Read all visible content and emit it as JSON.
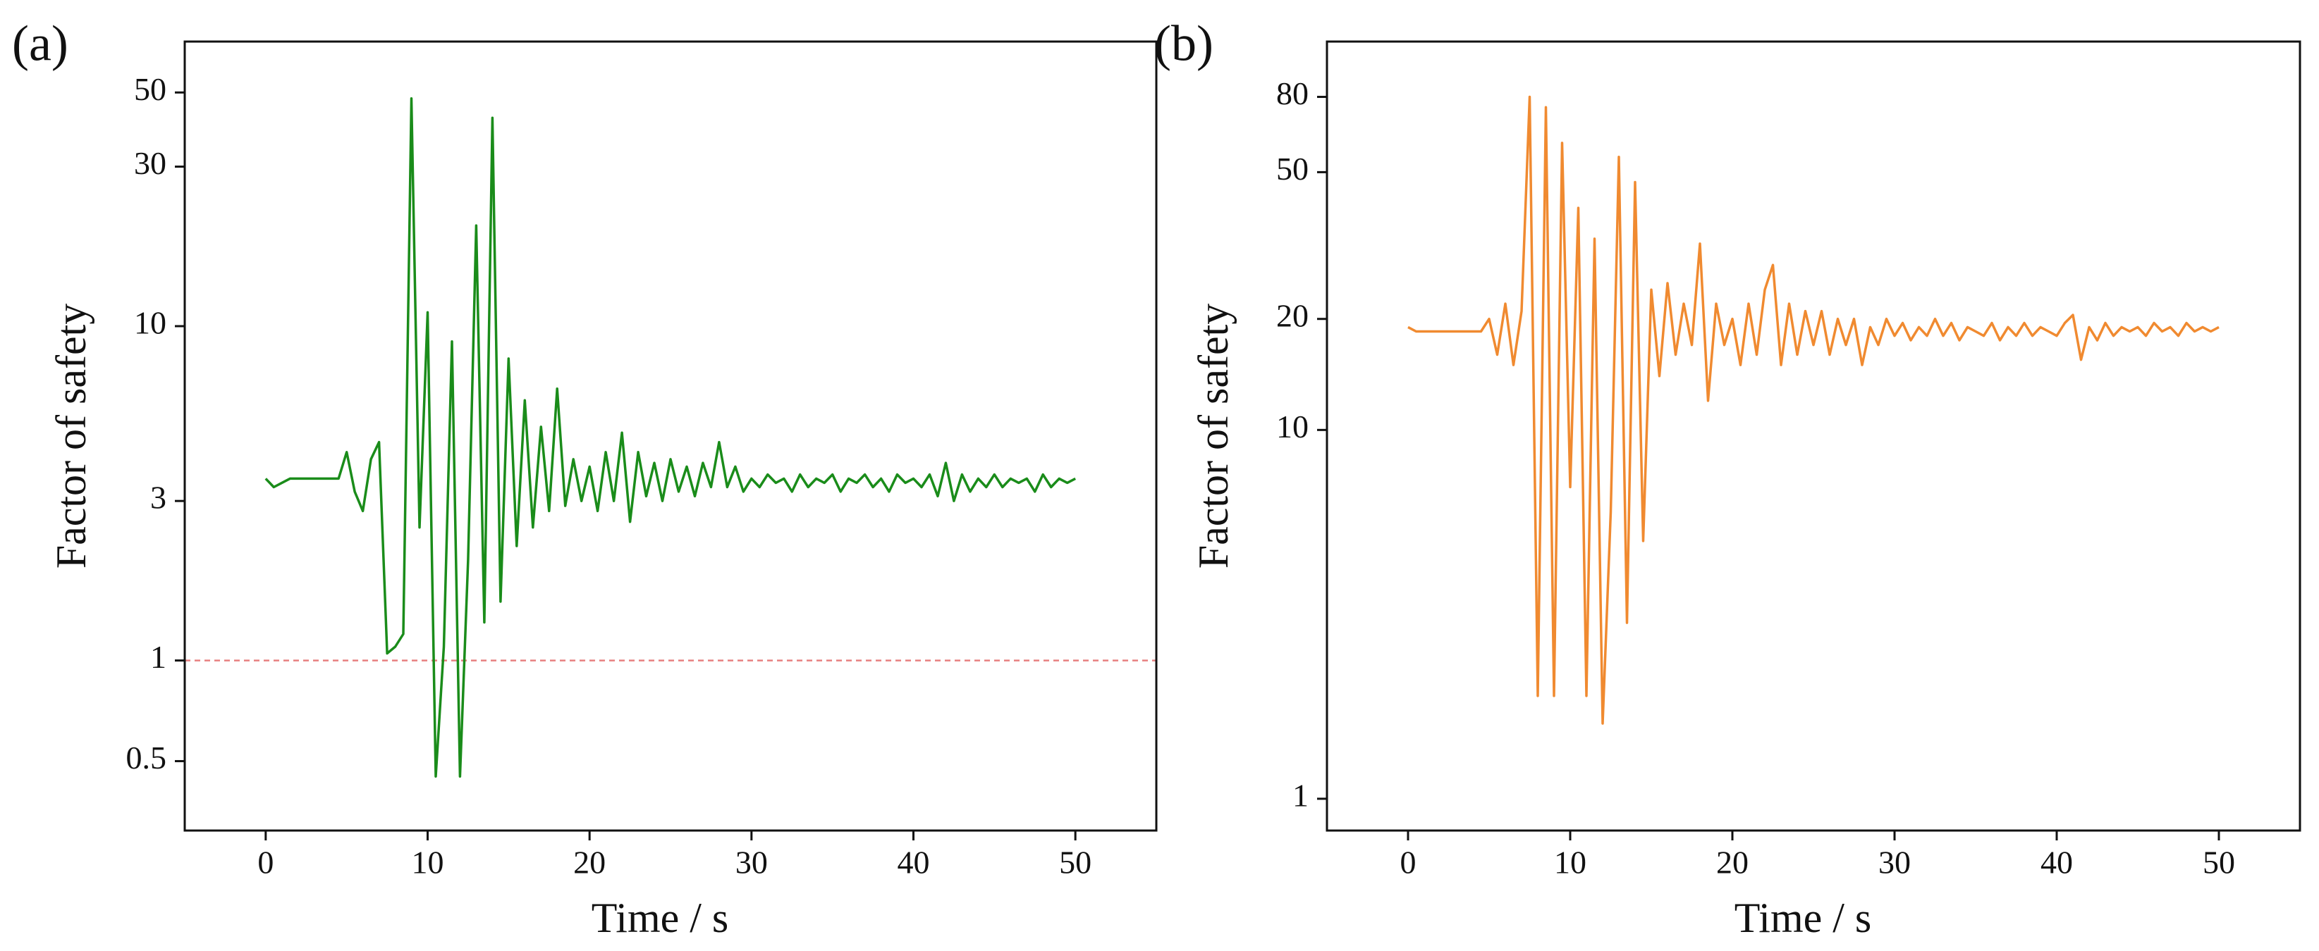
{
  "chart_data": [
    {
      "type": "line",
      "panel_label": "(a)",
      "xlabel": "Time / s",
      "ylabel": "Factor of safety",
      "yscale": "log",
      "xlim": [
        -5,
        55
      ],
      "xticks": [
        0,
        10,
        20,
        30,
        40,
        50
      ],
      "ylim": [
        0.31,
        71
      ],
      "yticks": [
        0.5,
        1,
        3,
        10,
        30,
        50
      ],
      "reference_line": {
        "value": 1,
        "color": "#e88080"
      },
      "x": [
        0,
        0.5,
        1,
        1.5,
        2,
        2.5,
        3,
        3.5,
        4,
        4.5,
        5,
        5.5,
        6,
        6.5,
        7,
        7.5,
        8,
        8.5,
        9,
        9.5,
        10,
        10.5,
        11,
        11.5,
        12,
        12.5,
        13,
        13.5,
        14,
        14.5,
        15,
        15.5,
        16,
        16.5,
        17,
        17.5,
        18,
        18.5,
        19,
        19.5,
        20,
        20.5,
        21,
        21.5,
        22,
        22.5,
        23,
        23.5,
        24,
        24.5,
        25,
        25.5,
        26,
        26.5,
        27,
        27.5,
        28,
        28.5,
        29,
        29.5,
        30,
        30.5,
        31,
        31.5,
        32,
        32.5,
        33,
        33.5,
        34,
        34.5,
        35,
        35.5,
        36,
        36.5,
        37,
        37.5,
        38,
        38.5,
        39,
        39.5,
        40,
        40.5,
        41,
        41.5,
        42,
        42.5,
        43,
        43.5,
        44,
        44.5,
        45,
        45.5,
        46,
        46.5,
        47,
        47.5,
        48,
        48.5,
        49,
        49.5,
        50
      ],
      "series": [
        {
          "color": "#1a8c1a",
          "values": [
            3.5,
            3.3,
            3.4,
            3.5,
            3.5,
            3.5,
            3.5,
            3.5,
            3.5,
            3.5,
            4.2,
            3.2,
            2.8,
            4.0,
            4.5,
            1.05,
            1.1,
            1.2,
            48,
            2.5,
            11,
            0.45,
            1.1,
            9,
            0.45,
            2,
            20,
            1.3,
            42,
            1.5,
            8,
            2.2,
            6,
            2.5,
            5,
            2.8,
            6.5,
            2.9,
            4,
            3,
            3.8,
            2.8,
            4.2,
            3,
            4.8,
            2.6,
            4.2,
            3.1,
            3.9,
            3,
            4,
            3.2,
            3.8,
            3.1,
            3.9,
            3.3,
            4.5,
            3.3,
            3.8,
            3.2,
            3.5,
            3.3,
            3.6,
            3.4,
            3.5,
            3.2,
            3.6,
            3.3,
            3.5,
            3.4,
            3.6,
            3.2,
            3.5,
            3.4,
            3.6,
            3.3,
            3.5,
            3.2,
            3.6,
            3.4,
            3.5,
            3.3,
            3.6,
            3.1,
            3.9,
            3.0,
            3.6,
            3.2,
            3.5,
            3.3,
            3.6,
            3.3,
            3.5,
            3.4,
            3.5,
            3.2,
            3.6,
            3.3,
            3.5,
            3.4,
            3.5
          ]
        }
      ]
    },
    {
      "type": "line",
      "panel_label": "(b)",
      "xlabel": "Time / s",
      "ylabel": "Factor of safety",
      "yscale": "log",
      "xlim": [
        -5,
        55
      ],
      "xticks": [
        0,
        10,
        20,
        30,
        40,
        50
      ],
      "ylim": [
        0.82,
        113
      ],
      "yticks": [
        1,
        10,
        20,
        50,
        80
      ],
      "x": [
        0,
        0.5,
        1,
        1.5,
        2,
        2.5,
        3,
        3.5,
        4,
        4.5,
        5,
        5.5,
        6,
        6.5,
        7,
        7.5,
        8,
        8.5,
        9,
        9.5,
        10,
        10.5,
        11,
        11.5,
        12,
        12.5,
        13,
        13.5,
        14,
        14.5,
        15,
        15.5,
        16,
        16.5,
        17,
        17.5,
        18,
        18.5,
        19,
        19.5,
        20,
        20.5,
        21,
        21.5,
        22,
        22.5,
        23,
        23.5,
        24,
        24.5,
        25,
        25.5,
        26,
        26.5,
        27,
        27.5,
        28,
        28.5,
        29,
        29.5,
        30,
        30.5,
        31,
        31.5,
        32,
        32.5,
        33,
        33.5,
        34,
        34.5,
        35,
        35.5,
        36,
        36.5,
        37,
        37.5,
        38,
        38.5,
        39,
        39.5,
        40,
        40.5,
        41,
        41.5,
        42,
        42.5,
        43,
        43.5,
        44,
        44.5,
        45,
        45.5,
        46,
        46.5,
        47,
        47.5,
        48,
        48.5,
        49,
        49.5,
        50
      ],
      "series": [
        {
          "color": "#f08a30",
          "values": [
            19,
            18.5,
            18.5,
            18.5,
            18.5,
            18.5,
            18.5,
            18.5,
            18.5,
            18.5,
            20,
            16,
            22,
            15,
            21,
            80,
            1.9,
            75,
            1.9,
            60,
            7,
            40,
            1.9,
            33,
            1.6,
            6,
            55,
            3,
            47,
            5,
            24,
            14,
            25,
            16,
            22,
            17,
            32,
            12,
            22,
            17,
            20,
            15,
            22,
            16,
            24,
            28,
            15,
            22,
            16,
            21,
            17,
            21,
            16,
            20,
            17,
            20,
            15,
            19,
            17,
            20,
            18,
            19.5,
            17.5,
            19,
            18,
            20,
            18,
            19.5,
            17.5,
            19,
            18.5,
            18,
            19.5,
            17.5,
            19,
            18,
            19.5,
            18,
            19,
            18.5,
            18,
            19.5,
            20.5,
            15.5,
            19,
            17.5,
            19.5,
            18,
            19,
            18.5,
            19,
            18,
            19.5,
            18.5,
            19,
            18,
            19.5,
            18.5,
            19,
            18.5,
            19
          ]
        }
      ]
    }
  ]
}
